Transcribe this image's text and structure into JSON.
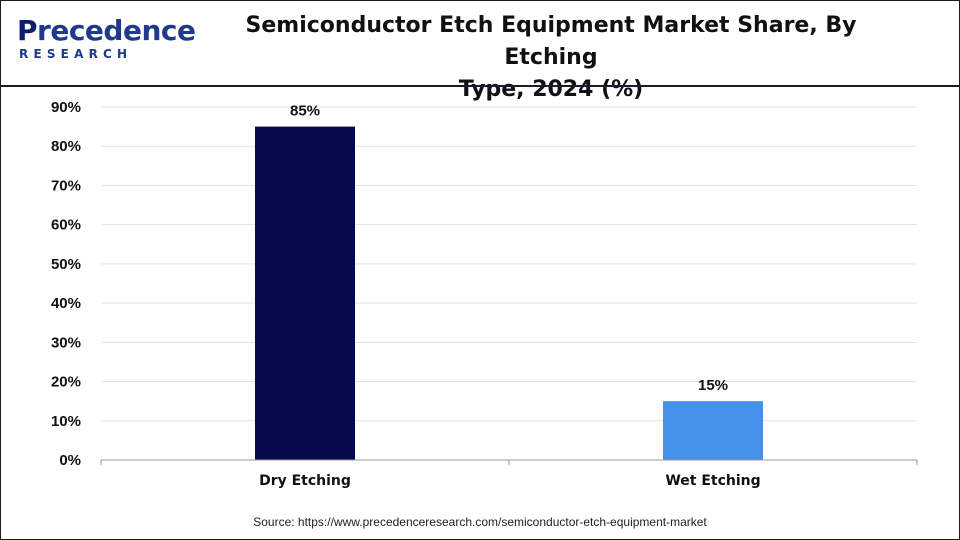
{
  "brand": {
    "logo_word_initial": "P",
    "logo_word_rest": "recedence",
    "logo_sub": "RESEARCH",
    "color": "#1f3a8a"
  },
  "chart_data": {
    "type": "bar",
    "title": "Semiconductor Etch Equipment Market Share, By Etching Type, 2024 (%)",
    "title_lines": [
      "Semiconductor Etch Equipment Market Share, By Etching",
      "Type, 2024 (%)"
    ],
    "categories": [
      "Dry Etching",
      "Wet Etching"
    ],
    "values": [
      85,
      15
    ],
    "value_labels": [
      "85%",
      "15%"
    ],
    "colors": [
      "#050a4e",
      "#4590e8"
    ],
    "xlabel": "",
    "ylabel": "",
    "ylim": [
      0,
      90
    ],
    "yticks": [
      0,
      10,
      20,
      30,
      40,
      50,
      60,
      70,
      80,
      90
    ],
    "ytick_labels": [
      "0%",
      "10%",
      "20%",
      "30%",
      "40%",
      "50%",
      "60%",
      "70%",
      "80%",
      "90%"
    ],
    "grid": true,
    "legend": "none"
  },
  "source_text": "Source: https://www.precedenceresearch.com/semiconductor-etch-equipment-market"
}
